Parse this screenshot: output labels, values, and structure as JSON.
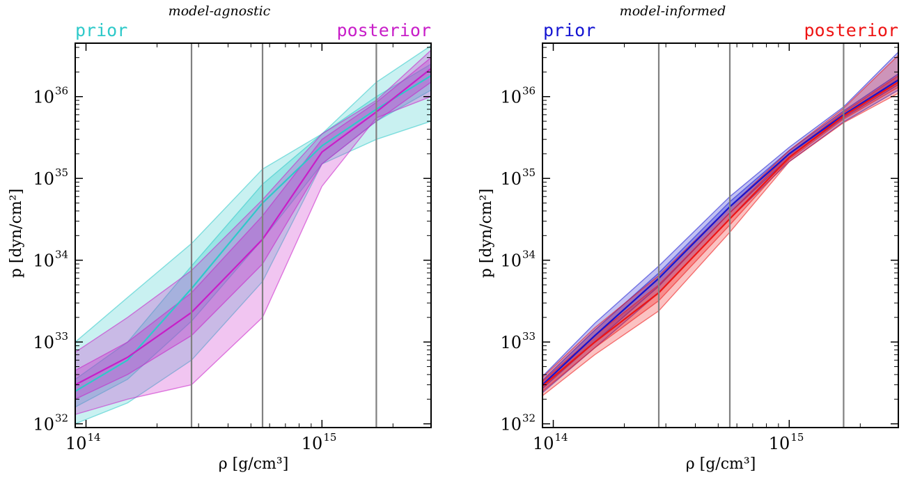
{
  "figure": {
    "panels": [
      {
        "title": "model-agnostic",
        "legend": {
          "left": "prior",
          "right": "posterior"
        },
        "colors": {
          "prior": "#2ec9c9",
          "posterior": "#c81ec8"
        }
      },
      {
        "title": "model-informed",
        "legend": {
          "left": "prior",
          "right": "posterior"
        },
        "colors": {
          "prior": "#1414d2",
          "posterior": "#ee1414"
        }
      }
    ],
    "xlabel": "ρ [g/cm³]",
    "ylabel": "p [dyn/cm²]",
    "xticks": [
      {
        "base": "10",
        "exp": "14"
      },
      {
        "base": "10",
        "exp": "15"
      }
    ],
    "yticks": [
      {
        "base": "10",
        "exp": "32"
      },
      {
        "base": "10",
        "exp": "33"
      },
      {
        "base": "10",
        "exp": "34"
      },
      {
        "base": "10",
        "exp": "35"
      },
      {
        "base": "10",
        "exp": "36"
      }
    ],
    "vlines_color": "#808080"
  },
  "chart_data": [
    {
      "type": "area",
      "title": "model-agnostic",
      "xlabel": "ρ [g/cm³]",
      "ylabel": "p [dyn/cm²]",
      "xscale": "log",
      "yscale": "log",
      "xlim": [
        90000000000000.0,
        2900000000000000.0
      ],
      "ylim": [
        9e+31,
        4.5e+36
      ],
      "vlines": [
        280000000000000.0,
        560000000000000.0,
        1700000000000000.0
      ],
      "x": [
        90000000000000.0,
        150000000000000.0,
        280000000000000.0,
        560000000000000.0,
        1000000000000000.0,
        1700000000000000.0,
        2900000000000000.0
      ],
      "series": [
        {
          "name": "prior",
          "median": [
            2.5e+32,
            6e+32,
            4.5e+33,
            5e+34,
            2.5e+35,
            7e+35,
            1.8e+36
          ],
          "band_inner": {
            "lower": [
              1.6e+32,
              3.5e+32,
              1.8e+33,
              1.8e+34,
              1.5e+35,
              5e+35,
              1.2e+36
            ],
            "upper": [
              3.5e+32,
              1e+33,
              8.5e+33,
              8.5e+34,
              3.5e+35,
              1e+36,
              2.5e+36
            ]
          },
          "band_outer": {
            "lower": [
              1e+32,
              1.8e+32,
              6e+32,
              5.5e+33,
              1.5e+35,
              3e+35,
              5e+35
            ],
            "upper": [
              1e+33,
              3.5e+33,
              1.6e+34,
              1.3e+35,
              3.5e+35,
              1.5e+36,
              4.2e+36
            ]
          }
        },
        {
          "name": "posterior",
          "median": [
            3e+32,
            6.5e+32,
            2.3e+33,
            1.8e+34,
            2.1e+35,
            6.5e+35,
            2.2e+36
          ],
          "band_inner": {
            "lower": [
              2e+32,
              4e+32,
              1.2e+33,
              9e+33,
              1.5e+35,
              5e+35,
              1.5e+36
            ],
            "upper": [
              4.5e+32,
              1e+33,
              4e+33,
              3.5e+34,
              3e+35,
              8.5e+35,
              3e+36
            ]
          },
          "band_outer": {
            "lower": [
              1.3e+32,
              2e+32,
              3e+32,
              2e+33,
              8e+34,
              5.5e+35,
              1e+36
            ],
            "upper": [
              7.5e+32,
              2e+33,
              7.5e+33,
              5.5e+34,
              3.5e+35,
              9e+35,
              3.7e+36
            ]
          }
        }
      ]
    },
    {
      "type": "area",
      "title": "model-informed",
      "xlabel": "ρ [g/cm³]",
      "ylabel": "p [dyn/cm²]",
      "xscale": "log",
      "yscale": "log",
      "xlim": [
        90000000000000.0,
        2900000000000000.0
      ],
      "ylim": [
        9e+31,
        4.5e+36
      ],
      "vlines": [
        280000000000000.0,
        560000000000000.0,
        1700000000000000.0
      ],
      "x": [
        90000000000000.0,
        150000000000000.0,
        280000000000000.0,
        560000000000000.0,
        1000000000000000.0,
        1700000000000000.0,
        2900000000000000.0
      ],
      "series": [
        {
          "name": "prior",
          "median": [
            3e+32,
            1.2e+33,
            6e+33,
            4.5e+34,
            2e+35,
            6e+35,
            1.6e+36
          ],
          "band_inner": {
            "lower": [
              2.7e+32,
              1e+33,
              4.8e+33,
              3.8e+34,
              1.8e+35,
              5.5e+35,
              1.4e+36
            ],
            "upper": [
              3.4e+32,
              1.4e+33,
              7e+33,
              5.2e+34,
              2.2e+35,
              6.7e+35,
              1.9e+36
            ]
          },
          "band_outer": {
            "lower": [
              2.4e+32,
              8.5e+32,
              4e+33,
              3.2e+34,
              1.6e+35,
              4.9e+35,
              1.2e+36
            ],
            "upper": [
              3.8e+32,
              1.7e+33,
              8.5e+33,
              6e+34,
              2.4e+35,
              7.5e+35,
              3.5e+36
            ]
          }
        },
        {
          "name": "posterior",
          "median": [
            2.9e+32,
            1e+33,
            4e+33,
            3.2e+34,
            1.8e+35,
            5.8e+35,
            1.5e+36
          ],
          "band_inner": {
            "lower": [
              2.5e+32,
              8.5e+32,
              3.2e+33,
              2.7e+34,
              1.7e+35,
              5.3e+35,
              1.3e+36
            ],
            "upper": [
              3.3e+32,
              1.2e+33,
              5e+33,
              3.8e+34,
              2e+35,
              6.4e+35,
              1.8e+36
            ]
          },
          "band_outer": {
            "lower": [
              2.2e+32,
              7e+32,
              2.4e+33,
              2.2e+34,
              1.6e+35,
              4.8e+35,
              1.1e+36
            ],
            "upper": [
              3.7e+32,
              1.5e+33,
              6.5e+33,
              4.5e+34,
              2.2e+35,
              7.2e+35,
              3.2e+36
            ]
          }
        }
      ]
    }
  ]
}
